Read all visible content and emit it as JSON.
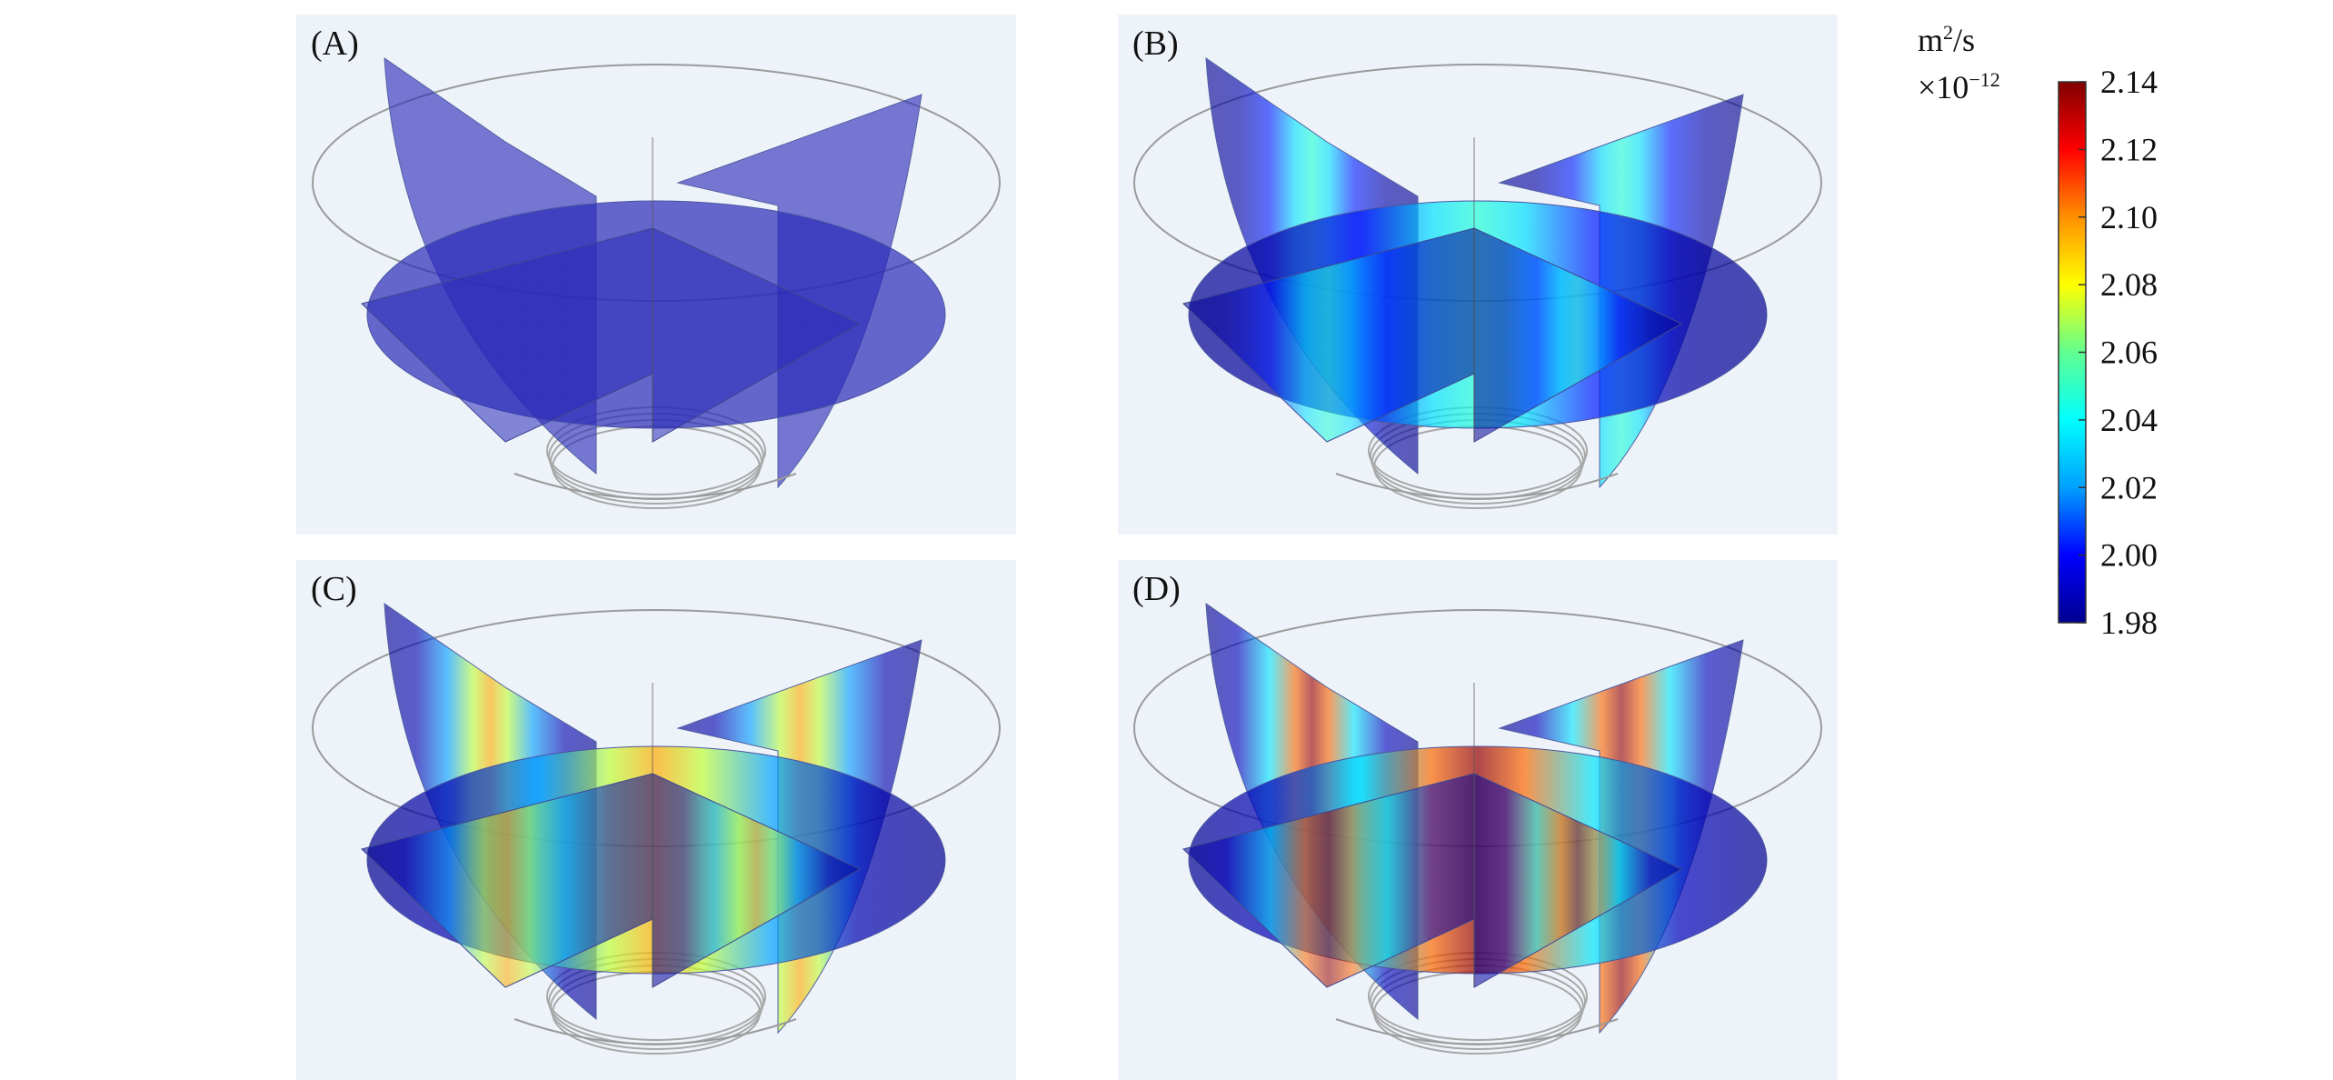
{
  "panels": [
    {
      "id": "a",
      "label": "(A)",
      "level": 0.0
    },
    {
      "id": "b",
      "label": "(B)",
      "level": 0.42
    },
    {
      "id": "c",
      "label": "(C)",
      "level": 0.72
    },
    {
      "id": "d",
      "label": "(D)",
      "level": 0.98
    }
  ],
  "colorbar": {
    "unit_base": "m",
    "unit_exp": "2",
    "unit_rest": "/s",
    "scale_prefix": "×10",
    "scale_exp": "−12",
    "min": 1.98,
    "max": 2.14,
    "ticks": [
      "2.14",
      "2.12",
      "2.10",
      "2.08",
      "2.06",
      "2.04",
      "2.02",
      "2.00",
      "1.98"
    ],
    "colormap": [
      "#00008f",
      "#0000ff",
      "#00a0ff",
      "#00ffff",
      "#60ff90",
      "#ffff00",
      "#ff9000",
      "#ff0000",
      "#800000"
    ]
  }
}
